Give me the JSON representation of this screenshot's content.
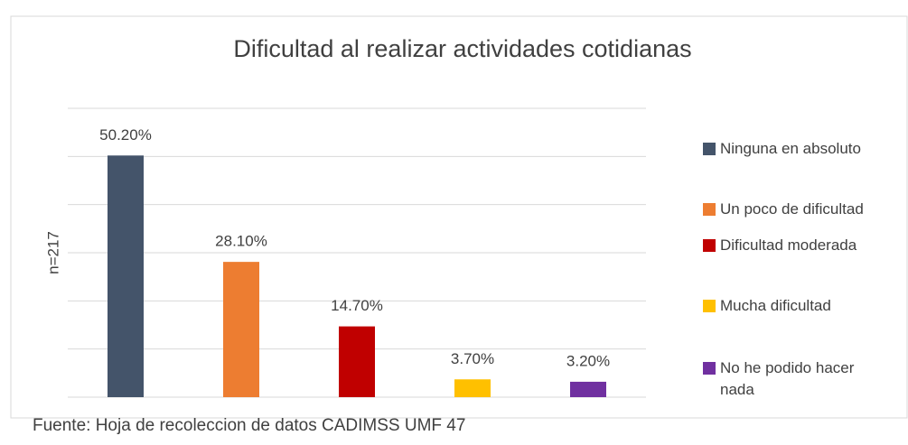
{
  "chart_data": {
    "type": "bar",
    "title": "Dificultad al realizar actividades cotidianas",
    "y_label": "n=217",
    "source": "Fuente: Hoja de recoleccion de datos CADIMSS UMF 47",
    "categories": [
      "Ninguna en absoluto",
      "Un poco de dificultad",
      "Dificultad moderada",
      "Mucha dificultad",
      "No he podido hacer nada"
    ],
    "values": [
      50.2,
      28.1,
      14.7,
      3.7,
      3.2
    ],
    "value_labels": [
      "50.20%",
      "28.10%",
      "14.70%",
      "3.70%",
      "3.20%"
    ],
    "colors": [
      "#44546a",
      "#ed7d31",
      "#c00000",
      "#ffc000",
      "#7030a0"
    ],
    "ylim": [
      0,
      60
    ],
    "yticks": [
      0,
      10,
      20,
      30,
      40,
      50,
      60
    ],
    "grid": true
  }
}
